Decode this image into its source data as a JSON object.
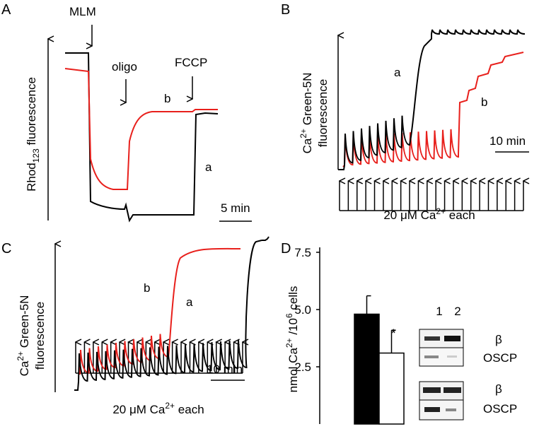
{
  "panels": [
    {
      "label": "A",
      "ylabel": [
        "Rhod",
        "123",
        " fluorescence"
      ],
      "annotations": [
        "MLM",
        "oligo",
        "FCCP",
        "b",
        "a"
      ],
      "scale": "5 min"
    },
    {
      "label": "B",
      "ylabel": [
        "Ca",
        "2+",
        " Green-5N",
        "fluorescence"
      ],
      "annotations": [
        "a",
        "b"
      ],
      "scale": "10 min",
      "xlabel": [
        "20 μM Ca",
        "2+",
        " each"
      ]
    },
    {
      "label": "C",
      "ylabel": [
        "Ca",
        "2+",
        " Green-5N",
        "fluorescence"
      ],
      "annotations": [
        "b",
        "a"
      ],
      "scale": "10 min",
      "xlabel": [
        "20 μM Ca",
        "2+",
        " each"
      ]
    },
    {
      "label": "D",
      "blot": {
        "lanes": [
          "1",
          "2"
        ],
        "bands": [
          "β",
          "OSCP",
          "β",
          "OSCP"
        ]
      }
    }
  ],
  "chart_data": {
    "type": "bar",
    "ylabel": [
      "nmol Ca",
      "2+",
      " /10",
      "6",
      " cells"
    ],
    "categories": [
      null,
      null
    ],
    "values": [
      4.8,
      3.1
    ],
    "errors": [
      0.8,
      1.0
    ],
    "colors": [
      "#000000",
      "#ffffff"
    ],
    "annotation": "*",
    "ylim": [
      0,
      7.5
    ],
    "yticks": [
      {
        "value": 2.5,
        "label": "2.5"
      },
      {
        "value": 5,
        "label": "5.0"
      },
      {
        "value": 7.5,
        "label": "7.5"
      }
    ]
  }
}
